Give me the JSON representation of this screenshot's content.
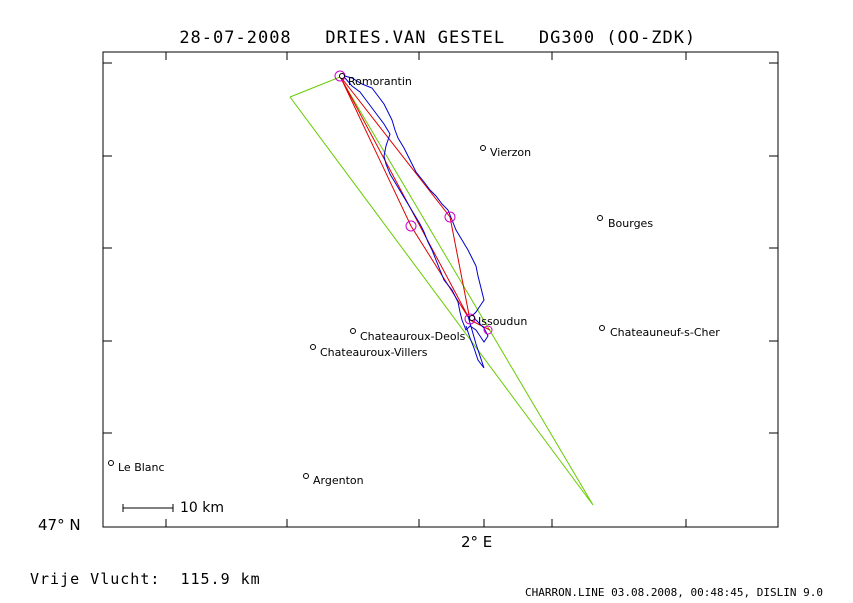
{
  "header": {
    "date": "28-07-2008",
    "pilot": "DRIES.VAN GESTEL",
    "glider": "DG300 (OO-ZDK)"
  },
  "axes": {
    "lat_label": "47° N",
    "lon_label": "2° E"
  },
  "towns": [
    {
      "name": "Romorantin"
    },
    {
      "name": "Vierzon"
    },
    {
      "name": "Bourges"
    },
    {
      "name": "Issoudun"
    },
    {
      "name": "Chateauroux-Deols"
    },
    {
      "name": "Chateauroux-Villers"
    },
    {
      "name": "Chateauneuf-s-Cher"
    },
    {
      "name": "Le Blanc"
    },
    {
      "name": "Argenton"
    }
  ],
  "scale": {
    "label": "10 km"
  },
  "footer": {
    "distance_label": "Vrije Vlucht:",
    "distance_value": "115.9 km",
    "source": "CHARRON.LINE 03.08.2008, 00:48:45, DISLIN 9.0"
  },
  "colors": {
    "track": "#0000cc",
    "task": "#dd0000",
    "sector": "#66cc00",
    "turnpoint": "#cc00cc"
  }
}
